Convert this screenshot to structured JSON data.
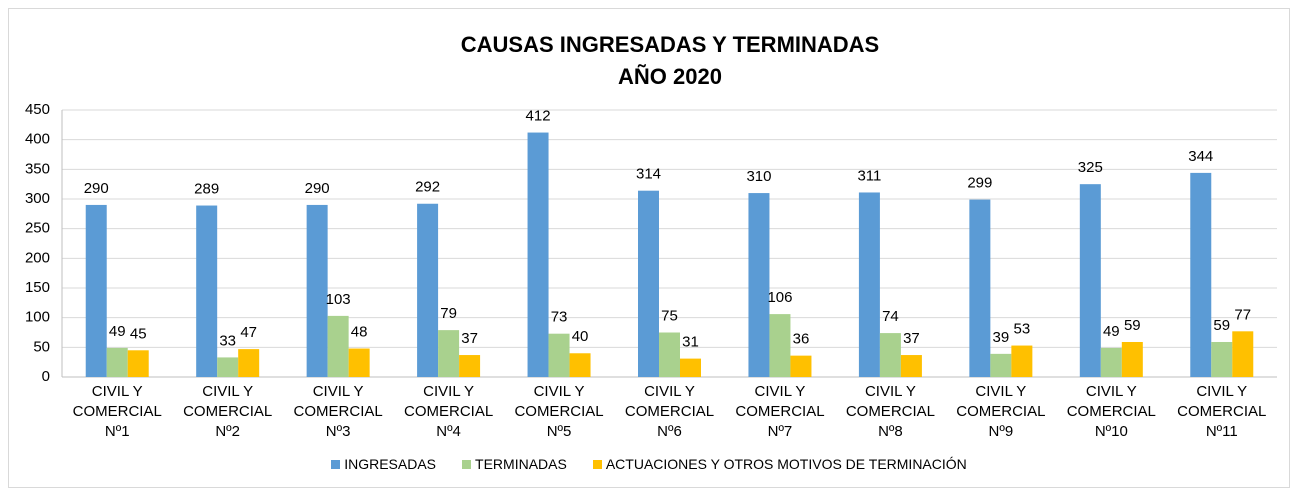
{
  "chart_data": {
    "type": "bar",
    "title": "CAUSAS INGRESADAS Y TERMINADAS",
    "subtitle": "AÑO 2020",
    "categories": [
      "CIVIL Y COMERCIAL Nº1",
      "CIVIL Y COMERCIAL Nº2",
      "CIVIL Y COMERCIAL Nº3",
      "CIVIL Y COMERCIAL Nº4",
      "CIVIL Y COMERCIAL Nº5",
      "CIVIL Y COMERCIAL Nº6",
      "CIVIL Y COMERCIAL Nº7",
      "CIVIL Y COMERCIAL Nº8",
      "CIVIL Y COMERCIAL Nº9",
      "CIVIL Y COMERCIAL Nº10",
      "CIVIL Y COMERCIAL Nº11"
    ],
    "series": [
      {
        "name": "INGRESADAS",
        "color": "#5b9bd5",
        "values": [
          290,
          289,
          290,
          292,
          412,
          314,
          310,
          311,
          299,
          325,
          344
        ]
      },
      {
        "name": "TERMINADAS",
        "color": "#a9d18e",
        "values": [
          49,
          33,
          103,
          79,
          73,
          75,
          106,
          74,
          39,
          49,
          59
        ]
      },
      {
        "name": "ACTUACIONES Y OTROS MOTIVOS DE TERMINACIÓN",
        "color": "#ffc000",
        "values": [
          45,
          47,
          48,
          37,
          40,
          31,
          36,
          37,
          53,
          59,
          77
        ]
      }
    ],
    "ylim": [
      0,
      450
    ],
    "yticks": [
      0,
      50,
      100,
      150,
      200,
      250,
      300,
      350,
      400,
      450
    ],
    "grid": true
  }
}
